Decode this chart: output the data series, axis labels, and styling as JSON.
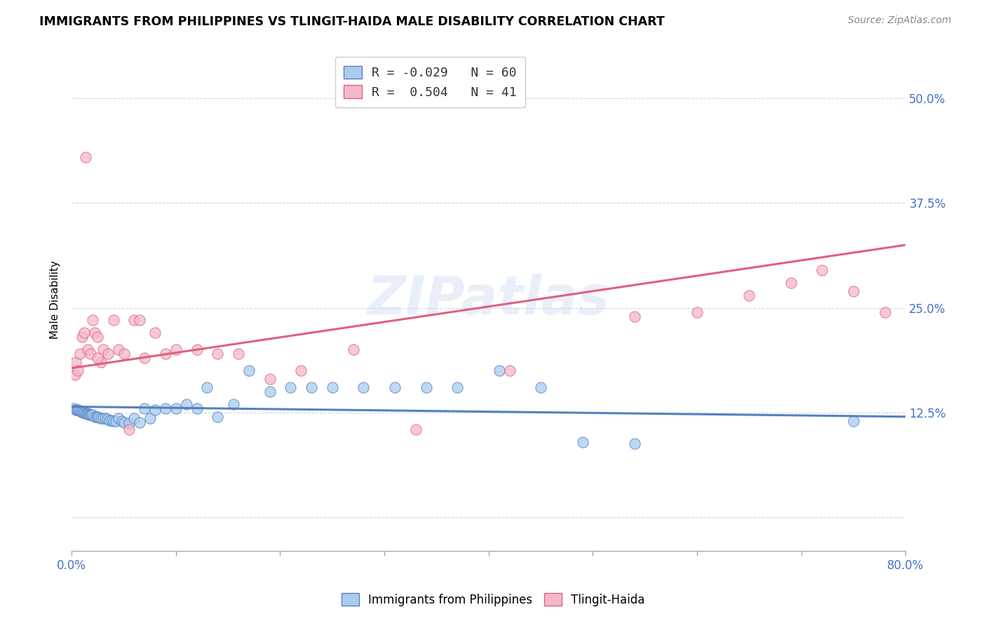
{
  "title": "IMMIGRANTS FROM PHILIPPINES VS TLINGIT-HAIDA MALE DISABILITY CORRELATION CHART",
  "source": "Source: ZipAtlas.com",
  "ylabel": "Male Disability",
  "yticks": [
    0.0,
    0.125,
    0.25,
    0.375,
    0.5
  ],
  "ytick_labels": [
    "",
    "12.5%",
    "25.0%",
    "37.5%",
    "50.0%"
  ],
  "xlim": [
    0.0,
    0.8
  ],
  "ylim": [
    -0.04,
    0.56
  ],
  "xtick_positions": [
    0.0,
    0.1,
    0.2,
    0.3,
    0.4,
    0.5,
    0.6,
    0.7,
    0.8
  ],
  "legend_entry1": "R = -0.029   N = 60",
  "legend_entry2": "R =  0.504   N = 41",
  "series1_color": "#aaccee",
  "series2_color": "#f4b8c8",
  "trendline1_color": "#5580c0",
  "trendline2_color": "#e06080",
  "background_color": "#ffffff",
  "grid_color": "#d0d8e4",
  "watermark": "ZIPatlas",
  "scatter1_x": [
    0.002,
    0.004,
    0.005,
    0.006,
    0.007,
    0.008,
    0.009,
    0.01,
    0.011,
    0.012,
    0.013,
    0.014,
    0.015,
    0.016,
    0.017,
    0.018,
    0.019,
    0.02,
    0.022,
    0.024,
    0.025,
    0.026,
    0.028,
    0.03,
    0.032,
    0.034,
    0.036,
    0.038,
    0.04,
    0.042,
    0.045,
    0.048,
    0.05,
    0.055,
    0.06,
    0.065,
    0.07,
    0.075,
    0.08,
    0.09,
    0.1,
    0.11,
    0.12,
    0.13,
    0.14,
    0.155,
    0.17,
    0.19,
    0.21,
    0.23,
    0.25,
    0.28,
    0.31,
    0.34,
    0.37,
    0.41,
    0.45,
    0.49,
    0.54,
    0.75
  ],
  "scatter1_y": [
    0.13,
    0.128,
    0.128,
    0.128,
    0.127,
    0.127,
    0.126,
    0.126,
    0.125,
    0.125,
    0.124,
    0.124,
    0.124,
    0.123,
    0.122,
    0.122,
    0.122,
    0.122,
    0.12,
    0.12,
    0.12,
    0.119,
    0.118,
    0.118,
    0.118,
    0.117,
    0.116,
    0.116,
    0.115,
    0.115,
    0.118,
    0.115,
    0.113,
    0.112,
    0.118,
    0.113,
    0.13,
    0.118,
    0.128,
    0.13,
    0.13,
    0.135,
    0.13,
    0.155,
    0.12,
    0.135,
    0.175,
    0.15,
    0.155,
    0.155,
    0.155,
    0.155,
    0.155,
    0.155,
    0.155,
    0.175,
    0.155,
    0.09,
    0.088,
    0.115
  ],
  "scatter2_x": [
    0.004,
    0.008,
    0.01,
    0.012,
    0.015,
    0.018,
    0.02,
    0.022,
    0.025,
    0.028,
    0.03,
    0.035,
    0.04,
    0.045,
    0.05,
    0.06,
    0.065,
    0.07,
    0.08,
    0.09,
    0.1,
    0.12,
    0.14,
    0.16,
    0.19,
    0.22,
    0.27,
    0.33,
    0.42,
    0.54,
    0.6,
    0.65,
    0.69,
    0.72,
    0.75,
    0.78,
    0.003,
    0.006,
    0.025,
    0.055,
    0.013
  ],
  "scatter2_y": [
    0.185,
    0.195,
    0.215,
    0.22,
    0.2,
    0.195,
    0.235,
    0.22,
    0.215,
    0.185,
    0.2,
    0.195,
    0.235,
    0.2,
    0.195,
    0.235,
    0.235,
    0.19,
    0.22,
    0.195,
    0.2,
    0.2,
    0.195,
    0.195,
    0.165,
    0.175,
    0.2,
    0.105,
    0.175,
    0.24,
    0.245,
    0.265,
    0.28,
    0.295,
    0.27,
    0.245,
    0.17,
    0.175,
    0.19,
    0.105,
    0.43
  ],
  "trendline1_x": [
    0.0,
    0.8
  ],
  "trendline1_y": [
    0.132,
    0.12
  ],
  "trendline2_x": [
    0.0,
    0.8
  ],
  "trendline2_y": [
    0.178,
    0.325
  ]
}
